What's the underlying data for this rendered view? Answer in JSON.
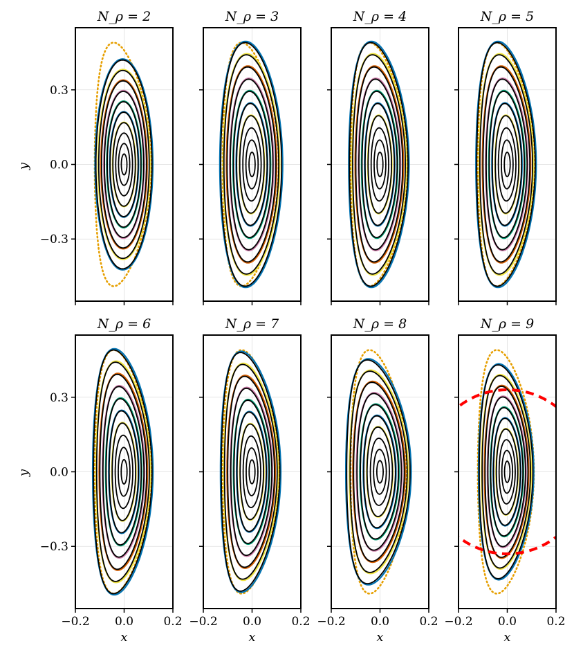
{
  "figure": {
    "xlabel": "x",
    "ylabel": "y"
  },
  "chart_data": {
    "type": "line",
    "grid": true,
    "x_ticks": [
      "−0.2",
      "0.0",
      "0.2"
    ],
    "y_ticks": [
      "0.3",
      "0.0",
      "−0.3"
    ],
    "xlim": [
      -0.2,
      0.2
    ],
    "ylim": [
      -0.55,
      0.55
    ],
    "panels": [
      {
        "title": "N_ρ = 2",
        "N_rho": 2,
        "outer_a": 0.115,
        "outer_b": 0.42,
        "triangularity": 0.05,
        "dashed_circle": false
      },
      {
        "title": "N_ρ = 3",
        "N_rho": 3,
        "outer_a": 0.125,
        "outer_b": 0.49,
        "triangularity": 0.2,
        "dashed_circle": false
      },
      {
        "title": "N_ρ = 4",
        "N_rho": 4,
        "outer_a": 0.12,
        "outer_b": 0.49,
        "triangularity": 0.28,
        "dashed_circle": false
      },
      {
        "title": "N_ρ = 5",
        "N_rho": 5,
        "outer_a": 0.12,
        "outer_b": 0.49,
        "triangularity": 0.3,
        "dashed_circle": false
      },
      {
        "title": "N_ρ = 6",
        "N_rho": 6,
        "outer_a": 0.12,
        "outer_b": 0.49,
        "triangularity": 0.32,
        "dashed_circle": false
      },
      {
        "title": "N_ρ = 7",
        "N_rho": 7,
        "outer_a": 0.12,
        "outer_b": 0.48,
        "triangularity": 0.35,
        "dashed_circle": false
      },
      {
        "title": "N_ρ = 8",
        "N_rho": 8,
        "outer_a": 0.13,
        "outer_b": 0.45,
        "triangularity": 0.35,
        "dashed_circle": false
      },
      {
        "title": "N_ρ = 9",
        "N_rho": 9,
        "outer_a": 0.11,
        "outer_b": 0.43,
        "triangularity": 0.3,
        "dashed_circle": true,
        "circle_radius": 0.33
      }
    ],
    "reference_boundary": {
      "a": 0.115,
      "b": 0.49,
      "triangularity": 0.33
    }
  },
  "colors": {
    "reference": "#e69f00",
    "blue": "#0072b2",
    "yellow": "#f0e442",
    "orange": "#d55e00",
    "purple": "#cc79a7",
    "green": "#009e73",
    "contour": "#000000",
    "dashed_circle": "#ff0000",
    "grid": "#dddddd"
  }
}
